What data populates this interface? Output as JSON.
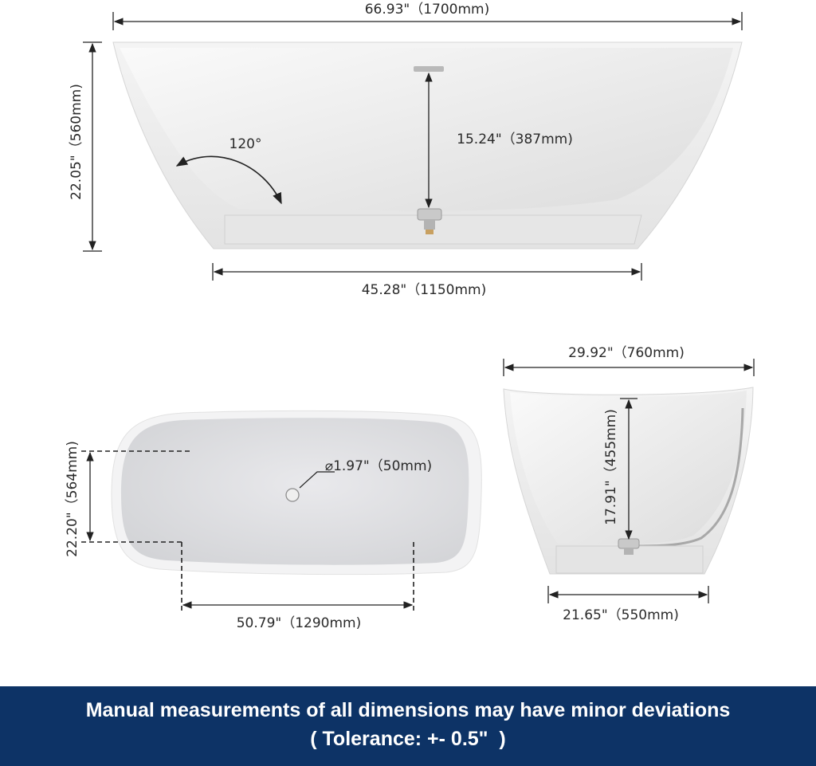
{
  "front_view": {
    "overall_length": "66.93\"（1700mm)",
    "height": "22.05\"（560mm)",
    "angle": "120°",
    "depth": "15.24\"（387mm)",
    "base_length": "45.28\"（1150mm)"
  },
  "top_view": {
    "width": "22.20\"（564mm)",
    "drain_diameter": "⌀1.97\"（50mm)",
    "inner_length": "50.79\"（1290mm)"
  },
  "side_view": {
    "top_width": "29.92\"（760mm)",
    "inner_depth": "17.91\"（455mm)",
    "base_width": "21.65\"（550mm)"
  },
  "banner": {
    "line1": "Manual measurements of all dimensions may have minor deviations",
    "line2": "( Tolerance: +- 0.5\"  )",
    "color": "#0d3366"
  }
}
